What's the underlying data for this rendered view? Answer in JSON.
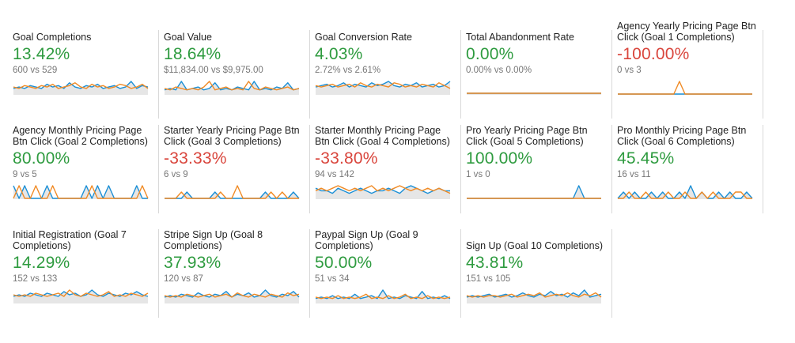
{
  "colors": {
    "positive": "#2e9b3f",
    "negative": "#d9453c",
    "series_current": "#1a8fd6",
    "series_previous": "#f08a24",
    "area_fill": "#e6e6e6",
    "separator": "#d8d8d8"
  },
  "tiles": [
    {
      "title": "Goal Completions",
      "value": "13.42%",
      "trend": "positive",
      "comparison": "600 vs 529",
      "spark": {
        "current": [
          4,
          5,
          4,
          6,
          5,
          4,
          7,
          5,
          6,
          4,
          8,
          5,
          4,
          6,
          5,
          7,
          4,
          5,
          6,
          4,
          5,
          9,
          4,
          6,
          5
        ],
        "previous": [
          5,
          4,
          6,
          5,
          4,
          6,
          5,
          7,
          4,
          5,
          6,
          8,
          5,
          4,
          7,
          5,
          6,
          4,
          5,
          7,
          6,
          4,
          5,
          7,
          4
        ]
      }
    },
    {
      "title": "Goal Value",
      "value": "18.64%",
      "trend": "positive",
      "comparison": "$11,834.00 vs $9,975.00",
      "spark": {
        "current": [
          3,
          4,
          3,
          9,
          3,
          4,
          5,
          3,
          4,
          8,
          3,
          4,
          3,
          5,
          4,
          3,
          9,
          3,
          4,
          3,
          5,
          4,
          8,
          3,
          4
        ],
        "previous": [
          4,
          3,
          5,
          4,
          3,
          4,
          3,
          5,
          9,
          3,
          4,
          5,
          3,
          4,
          3,
          9,
          4,
          3,
          5,
          4,
          3,
          4,
          5,
          3,
          4
        ]
      }
    },
    {
      "title": "Goal Conversion Rate",
      "value": "4.03%",
      "trend": "positive",
      "comparison": "2.72% vs 2.61%",
      "spark": {
        "current": [
          5,
          6,
          7,
          5,
          6,
          8,
          5,
          7,
          6,
          5,
          8,
          6,
          7,
          9,
          6,
          5,
          7,
          6,
          8,
          5,
          6,
          7,
          5,
          6,
          9
        ],
        "previous": [
          6,
          5,
          6,
          7,
          5,
          6,
          7,
          5,
          8,
          6,
          5,
          7,
          6,
          5,
          8,
          7,
          5,
          6,
          5,
          7,
          6,
          5,
          8,
          6,
          4
        ]
      }
    },
    {
      "title": "Total Abandonment Rate",
      "value": "0.00%",
      "trend": "positive",
      "comparison": "0.00% vs 0.00%",
      "spark": {
        "current": [
          0,
          0,
          0,
          0,
          0,
          0,
          0,
          0,
          0,
          0,
          0,
          0,
          0,
          0,
          0,
          0,
          0,
          0,
          0,
          0,
          0,
          0,
          0,
          0,
          0
        ],
        "previous": [
          0,
          0,
          0,
          0,
          0,
          0,
          0,
          0,
          0,
          0,
          0,
          0,
          0,
          0,
          0,
          0,
          0,
          0,
          0,
          0,
          0,
          0,
          0,
          0,
          0
        ]
      }
    },
    {
      "title": "Agency Yearly Pricing Page Btn Click (Goal 1 Completions)",
      "value": "-100.00%",
      "trend": "negative",
      "comparison": "0 vs 3",
      "spark": {
        "current": [
          0,
          0,
          0,
          0,
          0,
          0,
          0,
          0,
          0,
          0,
          0,
          0,
          0,
          0,
          0,
          0,
          0,
          0,
          0,
          0,
          0,
          0,
          0,
          0,
          0
        ],
        "previous": [
          0,
          0,
          0,
          0,
          0,
          0,
          0,
          0,
          0,
          0,
          0,
          1,
          0,
          0,
          0,
          0,
          0,
          0,
          0,
          0,
          0,
          0,
          0,
          0,
          0
        ]
      }
    },
    {
      "title": "Agency Monthly Pricing Page Btn Click (Goal 2 Completions)",
      "value": "80.00%",
      "trend": "positive",
      "comparison": "9 vs 5",
      "spark": {
        "current": [
          1,
          0,
          1,
          0,
          0,
          0,
          1,
          0,
          0,
          0,
          0,
          0,
          0,
          1,
          0,
          1,
          0,
          1,
          0,
          0,
          0,
          0,
          1,
          0,
          0
        ],
        "previous": [
          0,
          1,
          0,
          0,
          1,
          0,
          0,
          1,
          0,
          0,
          0,
          0,
          0,
          0,
          1,
          0,
          0,
          0,
          0,
          0,
          0,
          0,
          0,
          1,
          0
        ]
      }
    },
    {
      "title": "Starter Yearly Pricing Page Btn Click (Goal 3 Completions)",
      "value": "-33.33%",
      "trend": "negative",
      "comparison": "6 vs 9",
      "spark": {
        "current": [
          0,
          0,
          0,
          0,
          1,
          0,
          0,
          0,
          0,
          1,
          0,
          0,
          0,
          0,
          0,
          0,
          0,
          0,
          1,
          0,
          0,
          0,
          0,
          1,
          0
        ],
        "previous": [
          0,
          0,
          0,
          1,
          0,
          0,
          0,
          0,
          0,
          0,
          1,
          0,
          0,
          2,
          0,
          0,
          0,
          0,
          0,
          1,
          0,
          1,
          0,
          0,
          0
        ]
      }
    },
    {
      "title": "Starter Monthly Pricing Page Btn Click (Goal 4 Completions)",
      "value": "-33.80%",
      "trend": "negative",
      "comparison": "94 vs 142",
      "spark": {
        "current": [
          4,
          3,
          3,
          2,
          4,
          3,
          2,
          3,
          4,
          3,
          2,
          3,
          3,
          4,
          3,
          2,
          4,
          5,
          4,
          3,
          2,
          3,
          4,
          3,
          3
        ],
        "previous": [
          3,
          4,
          3,
          4,
          5,
          4,
          3,
          4,
          3,
          4,
          5,
          3,
          4,
          3,
          4,
          5,
          4,
          3,
          4,
          3,
          4,
          3,
          4,
          3,
          2
        ]
      }
    },
    {
      "title": "Pro Yearly Pricing Page Btn Click (Goal 5 Completions)",
      "value": "100.00%",
      "trend": "positive",
      "comparison": "1 vs 0",
      "spark": {
        "current": [
          0,
          0,
          0,
          0,
          0,
          0,
          0,
          0,
          0,
          0,
          0,
          0,
          0,
          0,
          0,
          0,
          0,
          0,
          0,
          0,
          1,
          0,
          0,
          0,
          0
        ],
        "previous": [
          0,
          0,
          0,
          0,
          0,
          0,
          0,
          0,
          0,
          0,
          0,
          0,
          0,
          0,
          0,
          0,
          0,
          0,
          0,
          0,
          0,
          0,
          0,
          0,
          0
        ]
      }
    },
    {
      "title": "Pro Monthly Pricing Page Btn Click (Goal 6 Completions)",
      "value": "45.45%",
      "trend": "positive",
      "comparison": "16 vs 11",
      "spark": {
        "current": [
          0,
          1,
          0,
          1,
          0,
          0,
          1,
          0,
          1,
          0,
          0,
          1,
          0,
          2,
          0,
          1,
          0,
          0,
          1,
          0,
          1,
          0,
          0,
          1,
          0
        ],
        "previous": [
          0,
          0,
          1,
          0,
          0,
          1,
          0,
          0,
          0,
          1,
          0,
          0,
          1,
          0,
          0,
          1,
          0,
          1,
          0,
          0,
          0,
          1,
          1,
          0,
          0
        ]
      }
    },
    {
      "title": "Initial Registration (Goal 7 Completions)",
      "value": "14.29%",
      "trend": "positive",
      "comparison": "152 vs 133",
      "spark": {
        "current": [
          4,
          5,
          4,
          6,
          5,
          4,
          6,
          5,
          4,
          7,
          5,
          6,
          4,
          5,
          8,
          5,
          4,
          6,
          5,
          4,
          6,
          5,
          7,
          5,
          4
        ],
        "previous": [
          5,
          4,
          5,
          4,
          6,
          5,
          4,
          5,
          6,
          4,
          8,
          5,
          4,
          6,
          5,
          4,
          5,
          7,
          4,
          5,
          4,
          6,
          5,
          4,
          6
        ]
      }
    },
    {
      "title": "Stripe Sign Up (Goal 8 Completions)",
      "value": "37.93%",
      "trend": "positive",
      "comparison": "120 vs 87",
      "spark": {
        "current": [
          4,
          5,
          4,
          6,
          5,
          4,
          7,
          5,
          4,
          6,
          5,
          8,
          4,
          6,
          5,
          7,
          4,
          5,
          9,
          5,
          4,
          6,
          5,
          8,
          4
        ],
        "previous": [
          5,
          4,
          5,
          4,
          6,
          5,
          4,
          5,
          6,
          4,
          5,
          6,
          4,
          7,
          5,
          4,
          6,
          5,
          4,
          6,
          5,
          4,
          7,
          5,
          6
        ]
      }
    },
    {
      "title": "Paypal Sign Up (Goal 9 Completions)",
      "value": "50.00%",
      "trend": "positive",
      "comparison": "51 vs 34",
      "spark": {
        "current": [
          3,
          4,
          3,
          5,
          3,
          4,
          3,
          6,
          3,
          4,
          5,
          3,
          9,
          3,
          4,
          3,
          5,
          4,
          3,
          8,
          3,
          4,
          3,
          5,
          3
        ],
        "previous": [
          4,
          3,
          4,
          3,
          5,
          3,
          4,
          3,
          4,
          6,
          3,
          4,
          3,
          5,
          3,
          4,
          6,
          3,
          4,
          3,
          5,
          3,
          4,
          3,
          4
        ]
      }
    },
    {
      "title": "Sign Up (Goal 10 Completions)",
      "value": "43.81%",
      "trend": "positive",
      "comparison": "151 vs 105",
      "spark": {
        "current": [
          4,
          5,
          4,
          5,
          6,
          4,
          5,
          6,
          4,
          5,
          7,
          5,
          4,
          6,
          5,
          8,
          5,
          6,
          4,
          7,
          5,
          9,
          4,
          5,
          6
        ],
        "previous": [
          5,
          4,
          5,
          4,
          5,
          5,
          4,
          5,
          6,
          4,
          5,
          6,
          5,
          7,
          4,
          5,
          6,
          5,
          7,
          5,
          4,
          6,
          5,
          7,
          4
        ]
      }
    }
  ]
}
